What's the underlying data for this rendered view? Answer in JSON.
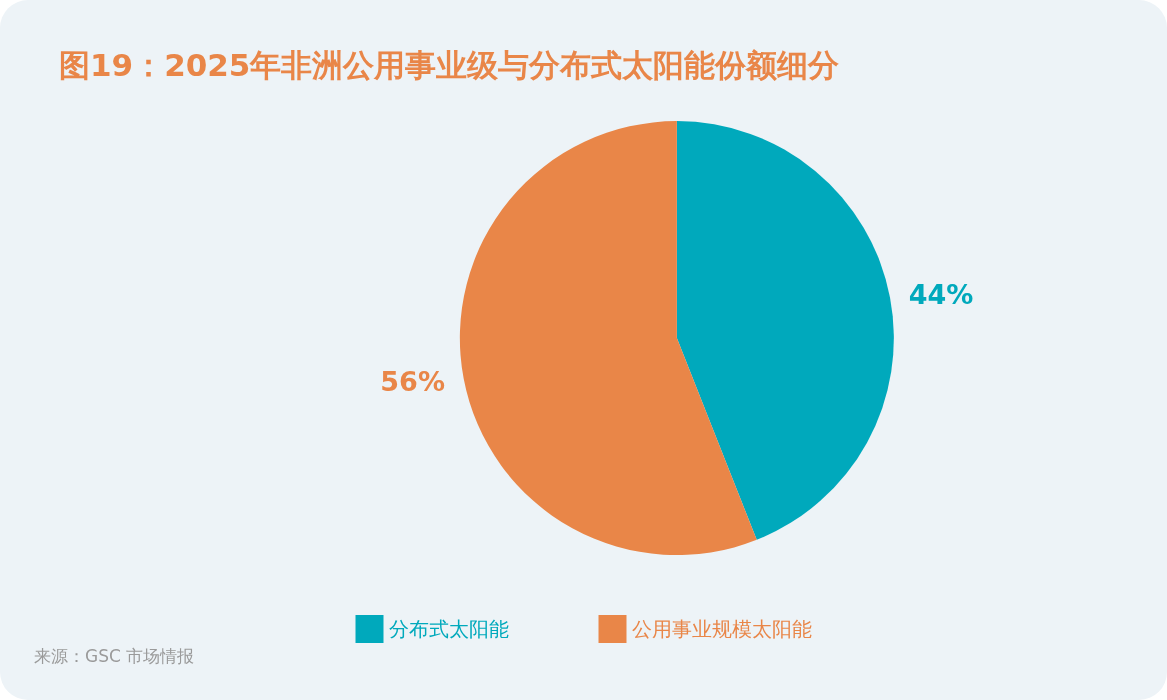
{
  "chart_data": {
    "type": "pie",
    "title": "图19：2025年非洲公用事业级与分布式太阳能份额细分",
    "categories": [
      "分布式太阳能",
      "公用事业规模太阳能"
    ],
    "values": [
      44,
      56
    ],
    "colors": [
      "#00a9bc",
      "#e98648"
    ],
    "value_labels": [
      "44%",
      "56%"
    ],
    "legend": "bottom",
    "annotations": [
      "来源：GSC 市场情报"
    ]
  }
}
